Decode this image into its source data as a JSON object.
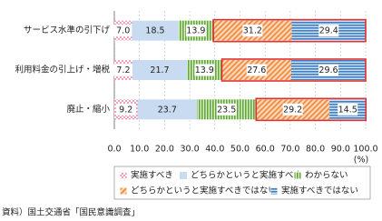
{
  "chart_data": {
    "type": "stacked-bar-horizontal",
    "categories": [
      "サービス水準の引下げ",
      "利用料金の引上げ・増税",
      "廃止・縮小"
    ],
    "series": [
      {
        "name": "実施すべき",
        "color": "#e8578b",
        "pattern": "dots",
        "values": [
          7.0,
          7.2,
          9.2
        ],
        "value_labels": [
          "7.0",
          "7.2",
          "9.2"
        ]
      },
      {
        "name": "どちらかというと実施すべき",
        "color": "#c9dbf0",
        "pattern": "solid",
        "values": [
          18.5,
          21.7,
          23.7
        ]
      },
      {
        "name": "わからない",
        "color": "#62a83a",
        "pattern": "vertical",
        "values": [
          13.9,
          13.9,
          23.5
        ]
      },
      {
        "name": "どちらかというと実施すべきではない",
        "color": "#f08a3c",
        "pattern": "diagonal",
        "values": [
          31.2,
          27.6,
          29.2
        ]
      },
      {
        "name": "実施すべきではない",
        "color": "#3f7fc4",
        "pattern": "horizontal",
        "values": [
          29.4,
          29.6,
          14.5
        ]
      }
    ],
    "highlight_color": "#e03030",
    "xlim": [
      0,
      100
    ],
    "xticks": [
      {
        "value": 0,
        "label": "0.0"
      },
      {
        "value": 10,
        "label": "10.0"
      },
      {
        "value": 20,
        "label": "20.0"
      },
      {
        "value": 30,
        "label": "30.0"
      },
      {
        "value": 40,
        "label": "40.0"
      },
      {
        "value": 50,
        "label": "50.0"
      },
      {
        "value": 60,
        "label": "60.0"
      },
      {
        "value": 70,
        "label": "70.0"
      },
      {
        "value": 80,
        "label": "80.0"
      },
      {
        "value": 90,
        "label": "90.0"
      },
      {
        "value": 100,
        "label": "100.0"
      }
    ],
    "x_unit": "(%)",
    "grid": true,
    "source": "資料）国土交通省「国民意識調査」"
  }
}
